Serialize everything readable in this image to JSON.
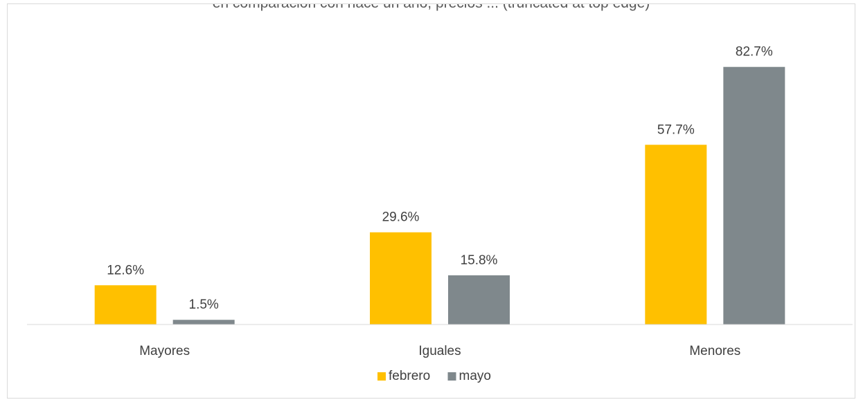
{
  "chart_data": {
    "type": "bar",
    "title": "en comparación con hace un año, precios ... (truncated at top edge)",
    "categories": [
      "Mayores",
      "Iguales",
      "Menores"
    ],
    "series": [
      {
        "name": "febrero",
        "values": [
          12.6,
          29.6,
          57.7
        ],
        "labels": [
          "12.6%",
          "29.6%",
          "57.7%"
        ],
        "color": "#ffc000"
      },
      {
        "name": "mayo",
        "values": [
          1.5,
          15.8,
          82.7
        ],
        "labels": [
          "1.5%",
          "15.8%",
          "82.7%"
        ],
        "color": "#7f888c"
      }
    ],
    "ylim": [
      0,
      90
    ],
    "value_format": "percent",
    "legend_position": "bottom",
    "grid": false,
    "xlabel": "",
    "ylabel": ""
  }
}
